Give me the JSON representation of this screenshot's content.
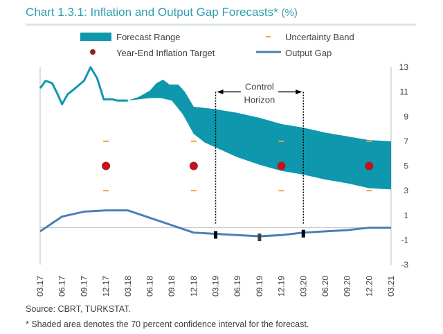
{
  "title": "Chart 1.3.1: Inflation and Output Gap Forecasts*",
  "title_unit": "(%)",
  "source": "Source: CBRT, TURKSTAT.",
  "footnote": "* Shaded area denotes the 70 percent confidence interval for the forecast.",
  "colors": {
    "range": "#0e97ad",
    "gap": "#4a7fb5",
    "target": "#c0141b",
    "band": "#f5a142",
    "title": "#2e9fb0"
  },
  "chart_data": {
    "type": "line",
    "legend": {
      "placement": "top",
      "items": [
        "Forecast Range",
        "Uncertainty Band",
        "Year-End Inflation Target",
        "Output Gap"
      ]
    },
    "x_ticks": [
      "03.17",
      "06.17",
      "09.17",
      "12.17",
      "03.18",
      "06.18",
      "09.18",
      "12.18",
      "03.19",
      "06.19",
      "09.19",
      "12.19",
      "03.20",
      "06.20",
      "09.20",
      "12.20",
      "03.21"
    ],
    "ylim": [
      -3,
      13
    ],
    "y_ticks": [
      "13",
      "11",
      "9",
      "7",
      "5",
      "3",
      "1",
      "-1",
      "-3"
    ],
    "y_tick_values": [
      13,
      11,
      9,
      7,
      5,
      3,
      1,
      -1,
      -3
    ],
    "annotation": [
      "Control",
      "Horizon"
    ],
    "inflation_history": [
      [
        0,
        11.3
      ],
      [
        0.25,
        11.9
      ],
      [
        0.55,
        11.7
      ],
      [
        0.8,
        10.8
      ],
      [
        1.0,
        10.0
      ],
      [
        1.25,
        10.8
      ],
      [
        1.6,
        11.3
      ],
      [
        2.0,
        11.9
      ],
      [
        2.3,
        13.0
      ],
      [
        2.6,
        12.1
      ],
      [
        2.9,
        10.4
      ],
      [
        3.3,
        10.4
      ],
      [
        3.5,
        10.3
      ],
      [
        4.0,
        10.3
      ]
    ],
    "forecast_upper": [
      [
        4.0,
        10.3
      ],
      [
        4.5,
        10.6
      ],
      [
        5.0,
        11.1
      ],
      [
        5.3,
        11.7
      ],
      [
        5.6,
        12.0
      ],
      [
        5.9,
        11.6
      ],
      [
        6.3,
        11.6
      ],
      [
        6.6,
        11.0
      ],
      [
        7.0,
        9.8
      ],
      [
        7.5,
        9.7
      ],
      [
        8.0,
        9.6
      ],
      [
        9.0,
        9.3
      ],
      [
        10.0,
        8.9
      ],
      [
        11.0,
        8.4
      ],
      [
        12.0,
        8.1
      ],
      [
        13.0,
        7.7
      ],
      [
        14.0,
        7.4
      ],
      [
        15.0,
        7.1
      ],
      [
        16.0,
        7.0
      ]
    ],
    "forecast_lower": [
      [
        4.0,
        10.3
      ],
      [
        4.5,
        10.4
      ],
      [
        5.0,
        10.5
      ],
      [
        5.5,
        10.5
      ],
      [
        6.0,
        10.3
      ],
      [
        6.5,
        9.2
      ],
      [
        7.0,
        7.6
      ],
      [
        7.5,
        6.9
      ],
      [
        8.0,
        6.5
      ],
      [
        9.0,
        5.7
      ],
      [
        10.0,
        5.1
      ],
      [
        11.0,
        4.6
      ],
      [
        12.0,
        4.3
      ],
      [
        13.0,
        3.9
      ],
      [
        14.0,
        3.6
      ],
      [
        15.0,
        3.2
      ],
      [
        16.0,
        3.1
      ]
    ],
    "year_end_targets": [
      {
        "x": "12.17",
        "value": 5
      },
      {
        "x": "12.18",
        "value": 5
      },
      {
        "x": "12.19",
        "value": 5
      },
      {
        "x": "12.20",
        "value": 5
      }
    ],
    "uncertainty_band": {
      "x": [
        "12.17",
        "12.18",
        "12.19",
        "12.20"
      ],
      "upper": 7,
      "lower": 3
    },
    "output_gap": [
      [
        0,
        -0.3
      ],
      [
        1.0,
        0.9
      ],
      [
        2.0,
        1.3
      ],
      [
        3.0,
        1.4
      ],
      [
        4.0,
        1.4
      ],
      [
        5.0,
        0.8
      ],
      [
        6.0,
        0.2
      ],
      [
        7.0,
        -0.4
      ],
      [
        8.0,
        -0.5
      ],
      [
        9.0,
        -0.6
      ],
      [
        10.0,
        -0.7
      ],
      [
        11.0,
        -0.6
      ],
      [
        12.0,
        -0.4
      ],
      [
        13.0,
        -0.3
      ],
      [
        14.0,
        -0.2
      ],
      [
        15.0,
        0.0
      ],
      [
        16.0,
        0.0
      ]
    ],
    "gap_markers": [
      "03.19",
      "09.19",
      "03.20"
    ],
    "control_horizon": [
      "03.19",
      "03.20"
    ]
  }
}
